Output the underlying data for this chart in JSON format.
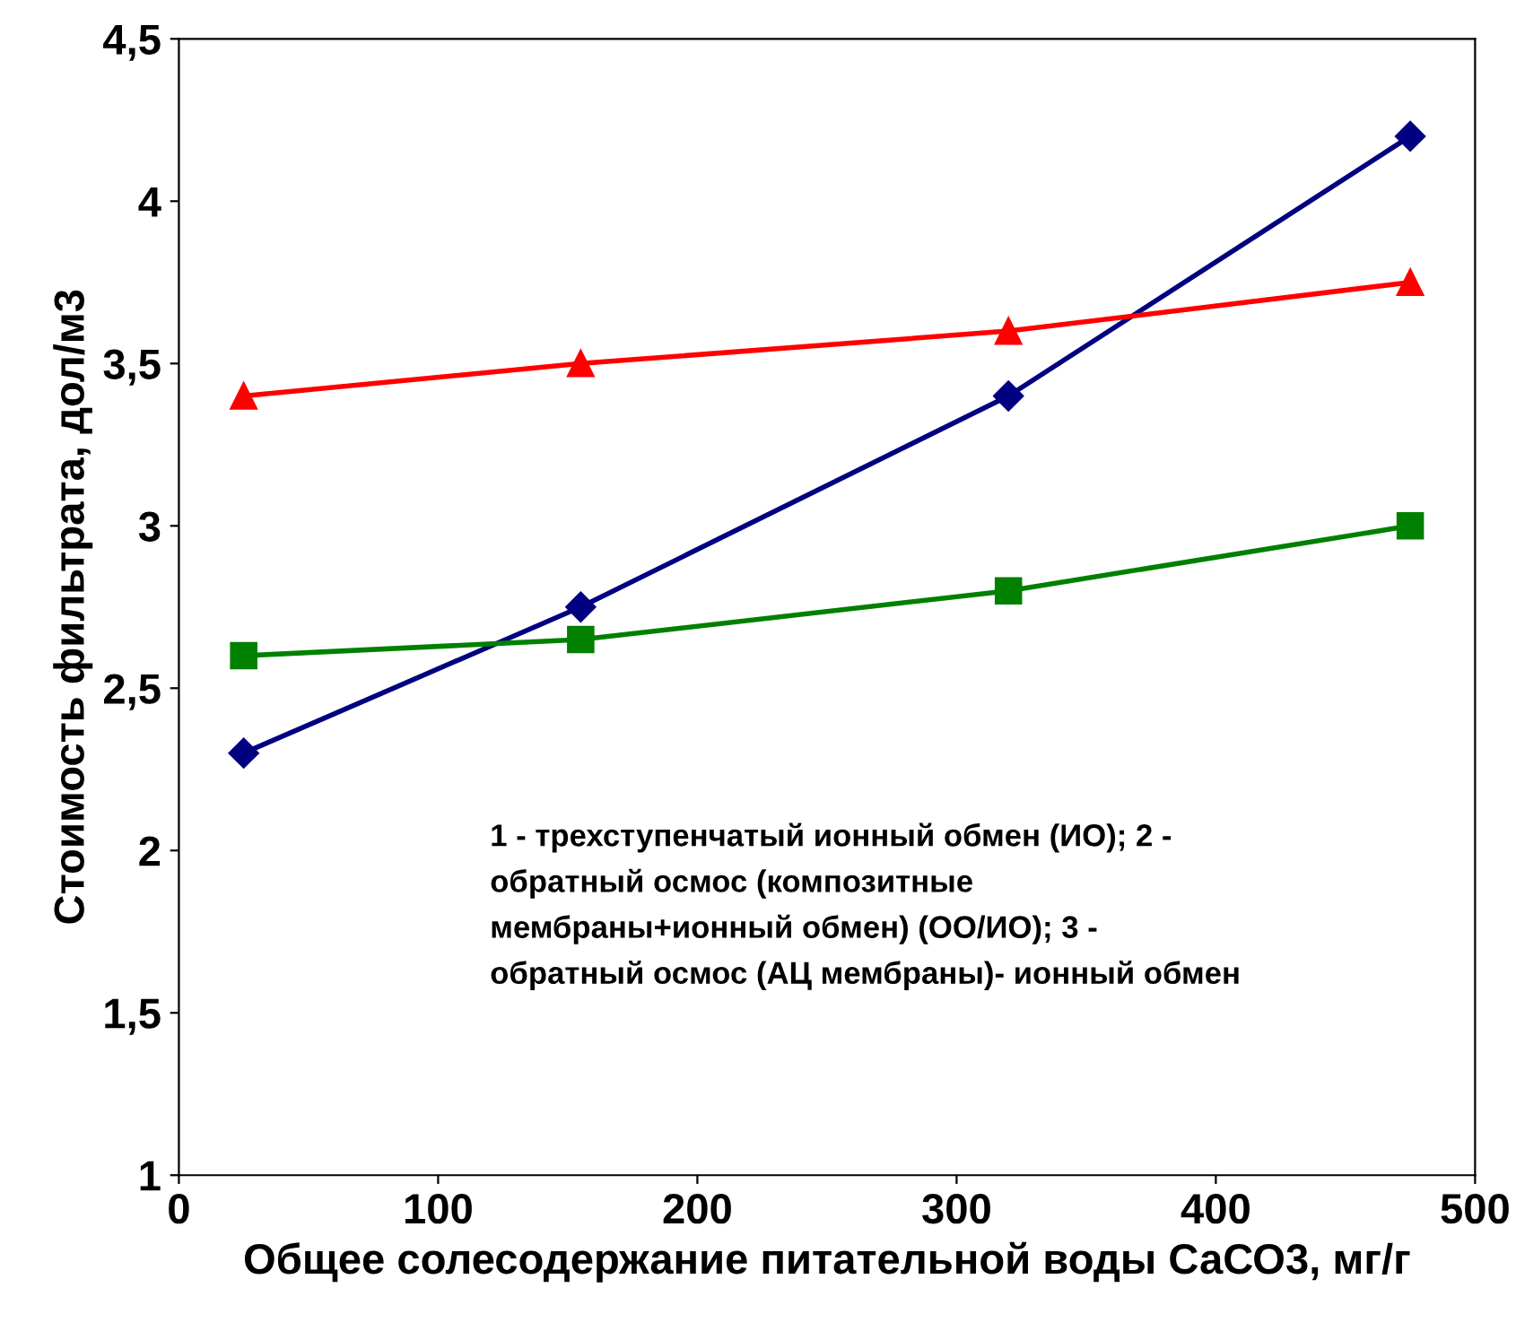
{
  "chart_data": {
    "type": "line",
    "xlabel": "Общее солесодержание питательной воды СаСО3, мг/г",
    "ylabel": "Стоимость фильтрата, дол/м3",
    "x": [
      25,
      155,
      320,
      475
    ],
    "series": [
      {
        "color": "#000080",
        "marker": "diamond",
        "values": [
          2.3,
          2.75,
          3.4,
          4.2
        ]
      },
      {
        "color": "#ff0000",
        "marker": "triangle",
        "values": [
          3.4,
          3.5,
          3.6,
          3.75
        ]
      },
      {
        "color": "#008000",
        "marker": "square",
        "values": [
          2.6,
          2.65,
          2.8,
          3.0
        ]
      }
    ],
    "xlim": [
      0,
      500
    ],
    "xticks": [
      0,
      100,
      200,
      300,
      400,
      500
    ],
    "ylim": [
      1,
      4.5
    ],
    "yticks": [
      1,
      {
        "value": 1.5,
        "label": "1,5"
      },
      2,
      {
        "value": 2.5,
        "label": "2,5"
      },
      3,
      {
        "value": 3.5,
        "label": "3,5"
      },
      4,
      {
        "value": 4.5,
        "label": "4,5"
      }
    ],
    "grid": false,
    "line_style": "solid",
    "annotations": [
      "1 - трехступенчатый ионный обмен (ИО); 2 -\nобратный осмос (композитные\nмембраны+ионный обмен) (ОО/ИО); 3 -\nобратный осмос (АЦ мембраны)- ионный обмен"
    ]
  }
}
